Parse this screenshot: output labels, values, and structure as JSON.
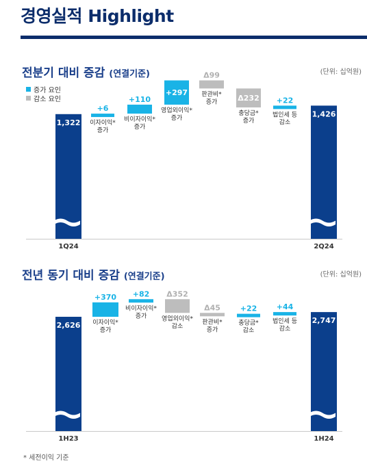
{
  "page": {
    "title": "경영실적 Highlight",
    "footnote": "* 세전이익 기준"
  },
  "legend": {
    "increase": "증가 요인",
    "decrease": "감소 요인"
  },
  "colors": {
    "navy": "#0b3f8c",
    "cyan": "#19b3e6",
    "gray": "#bdbdbd",
    "title": "#1a3f8a",
    "deltaGray": "#b0b0b0"
  },
  "sections": [
    {
      "title": "전분기 대비 증감",
      "subtitle": "(연결기준)",
      "unit": "(단위: 십억원)"
    },
    {
      "title": "전년 동기 대비 증감",
      "subtitle": "(연결기준)",
      "unit": "(단위: 십억원)"
    }
  ],
  "chart_data": [
    {
      "type": "bar",
      "subtype": "waterfall",
      "categories": [
        "1Q24",
        "이자이익*\n증가",
        "비이자이익*\n증가",
        "영업외이익*\n증가",
        "판관비*\n증가",
        "충당금*\n증가",
        "법인세 등\n감소",
        "2Q24"
      ],
      "start": {
        "label": "1Q24",
        "value": 1322
      },
      "end": {
        "label": "2Q24",
        "value": 1426
      },
      "steps": [
        {
          "label": "이자이익*\n증가",
          "value": 6,
          "value_label": "+6",
          "kind": "increase"
        },
        {
          "label": "비이자이익*\n증가",
          "value": 110,
          "value_label": "+110",
          "kind": "increase"
        },
        {
          "label": "영업외이익*\n증가",
          "value": 297,
          "value_label": "+297",
          "kind": "increase"
        },
        {
          "label": "판관비*\n증가",
          "value": -99,
          "value_label": "Δ99",
          "kind": "decrease"
        },
        {
          "label": "충당금*\n증가",
          "value": -232,
          "value_label": "Δ232",
          "kind": "decrease"
        },
        {
          "label": "법인세 등\n감소",
          "value": 22,
          "value_label": "+22",
          "kind": "increase"
        }
      ]
    },
    {
      "type": "bar",
      "subtype": "waterfall",
      "categories": [
        "1H23",
        "이자이익*\n증가",
        "비이자이익*\n증가",
        "영업외이익*\n감소",
        "판관비*\n증가",
        "충당금*\n감소",
        "법인세 등\n감소",
        "1H24"
      ],
      "start": {
        "label": "1H23",
        "value": 2626
      },
      "end": {
        "label": "1H24",
        "value": 2747
      },
      "steps": [
        {
          "label": "이자이익*\n증가",
          "value": 370,
          "value_label": "+370",
          "kind": "increase"
        },
        {
          "label": "비이자이익*\n증가",
          "value": 82,
          "value_label": "+82",
          "kind": "increase"
        },
        {
          "label": "영업외이익*\n감소",
          "value": -352,
          "value_label": "Δ352",
          "kind": "decrease"
        },
        {
          "label": "판관비*\n증가",
          "value": -45,
          "value_label": "Δ45",
          "kind": "decrease"
        },
        {
          "label": "충당금*\n감소",
          "value": 22,
          "value_label": "+22",
          "kind": "increase"
        },
        {
          "label": "법인세 등\n감소",
          "value": 44,
          "value_label": "+44",
          "kind": "increase"
        }
      ]
    }
  ]
}
